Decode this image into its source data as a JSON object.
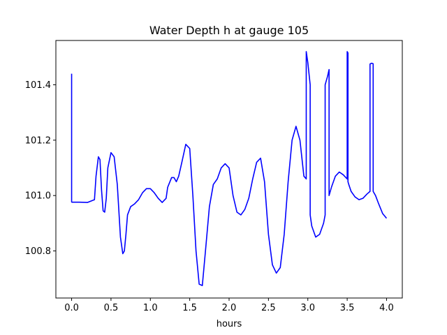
{
  "chart_data": {
    "type": "line",
    "title": "Water Depth h at gauge 105",
    "xlabel": "hours",
    "ylabel": "",
    "xlim": [
      -0.2,
      4.2
    ],
    "ylim": [
      100.63,
      101.56
    ],
    "xticks": [
      0.0,
      0.5,
      1.0,
      1.5,
      2.0,
      2.5,
      3.0,
      3.5,
      4.0
    ],
    "xtick_labels": [
      "0.0",
      "0.5",
      "1.0",
      "1.5",
      "2.0",
      "2.5",
      "3.0",
      "3.5",
      "4.0"
    ],
    "yticks": [
      100.8,
      101.0,
      101.2,
      101.4
    ],
    "ytick_labels": [
      "100.8",
      "101.0",
      "101.2",
      "101.4"
    ],
    "grid": false,
    "legend": "none",
    "series": [
      {
        "color": "#0000ff",
        "x": [
          0.0,
          0.0,
          0.004,
          0.1,
          0.2,
          0.29,
          0.31,
          0.34,
          0.36,
          0.38,
          0.4,
          0.42,
          0.44,
          0.46,
          0.5,
          0.54,
          0.58,
          0.62,
          0.65,
          0.67,
          0.69,
          0.71,
          0.75,
          0.8,
          0.85,
          0.9,
          0.95,
          1.0,
          1.05,
          1.1,
          1.15,
          1.2,
          1.22,
          1.27,
          1.3,
          1.33,
          1.36,
          1.4,
          1.45,
          1.5,
          1.54,
          1.58,
          1.62,
          1.66,
          1.7,
          1.75,
          1.8,
          1.85,
          1.9,
          1.95,
          2.0,
          2.05,
          2.1,
          2.15,
          2.2,
          2.25,
          2.3,
          2.35,
          2.4,
          2.45,
          2.5,
          2.55,
          2.6,
          2.65,
          2.7,
          2.75,
          2.8,
          2.85,
          2.9,
          2.95,
          2.98,
          2.98,
          3.0,
          3.03,
          3.03,
          3.05,
          3.1,
          3.15,
          3.2,
          3.22,
          3.22,
          3.25,
          3.27,
          3.27,
          3.3,
          3.35,
          3.4,
          3.45,
          3.5,
          3.5,
          3.51,
          3.51,
          3.52,
          3.55,
          3.6,
          3.65,
          3.7,
          3.75,
          3.79,
          3.79,
          3.81,
          3.83,
          3.83,
          3.86,
          3.9,
          3.95,
          4.0
        ],
        "y": [
          101.44,
          100.977,
          100.976,
          100.976,
          100.975,
          100.985,
          101.07,
          101.14,
          101.13,
          101.02,
          100.945,
          100.94,
          100.99,
          101.1,
          101.155,
          101.14,
          101.04,
          100.85,
          100.79,
          100.8,
          100.86,
          100.93,
          100.96,
          100.97,
          100.985,
          101.01,
          101.025,
          101.025,
          101.01,
          100.99,
          100.975,
          100.99,
          101.03,
          101.065,
          101.065,
          101.05,
          101.07,
          101.12,
          101.185,
          101.17,
          101.0,
          100.8,
          100.68,
          100.675,
          100.8,
          100.96,
          101.04,
          101.06,
          101.1,
          101.115,
          101.1,
          101.0,
          100.94,
          100.93,
          100.95,
          100.99,
          101.06,
          101.12,
          101.135,
          101.05,
          100.86,
          100.75,
          100.72,
          100.74,
          100.86,
          101.05,
          101.2,
          101.25,
          101.2,
          101.07,
          101.06,
          101.52,
          101.48,
          101.4,
          100.93,
          100.89,
          100.85,
          100.86,
          100.9,
          100.93,
          101.4,
          101.43,
          101.455,
          101.0,
          101.03,
          101.07,
          101.085,
          101.075,
          101.06,
          101.52,
          101.515,
          101.05,
          101.04,
          101.015,
          100.995,
          100.985,
          100.99,
          101.005,
          101.015,
          101.475,
          101.478,
          101.476,
          101.015,
          101.0,
          100.97,
          100.935,
          100.918
        ]
      }
    ]
  }
}
